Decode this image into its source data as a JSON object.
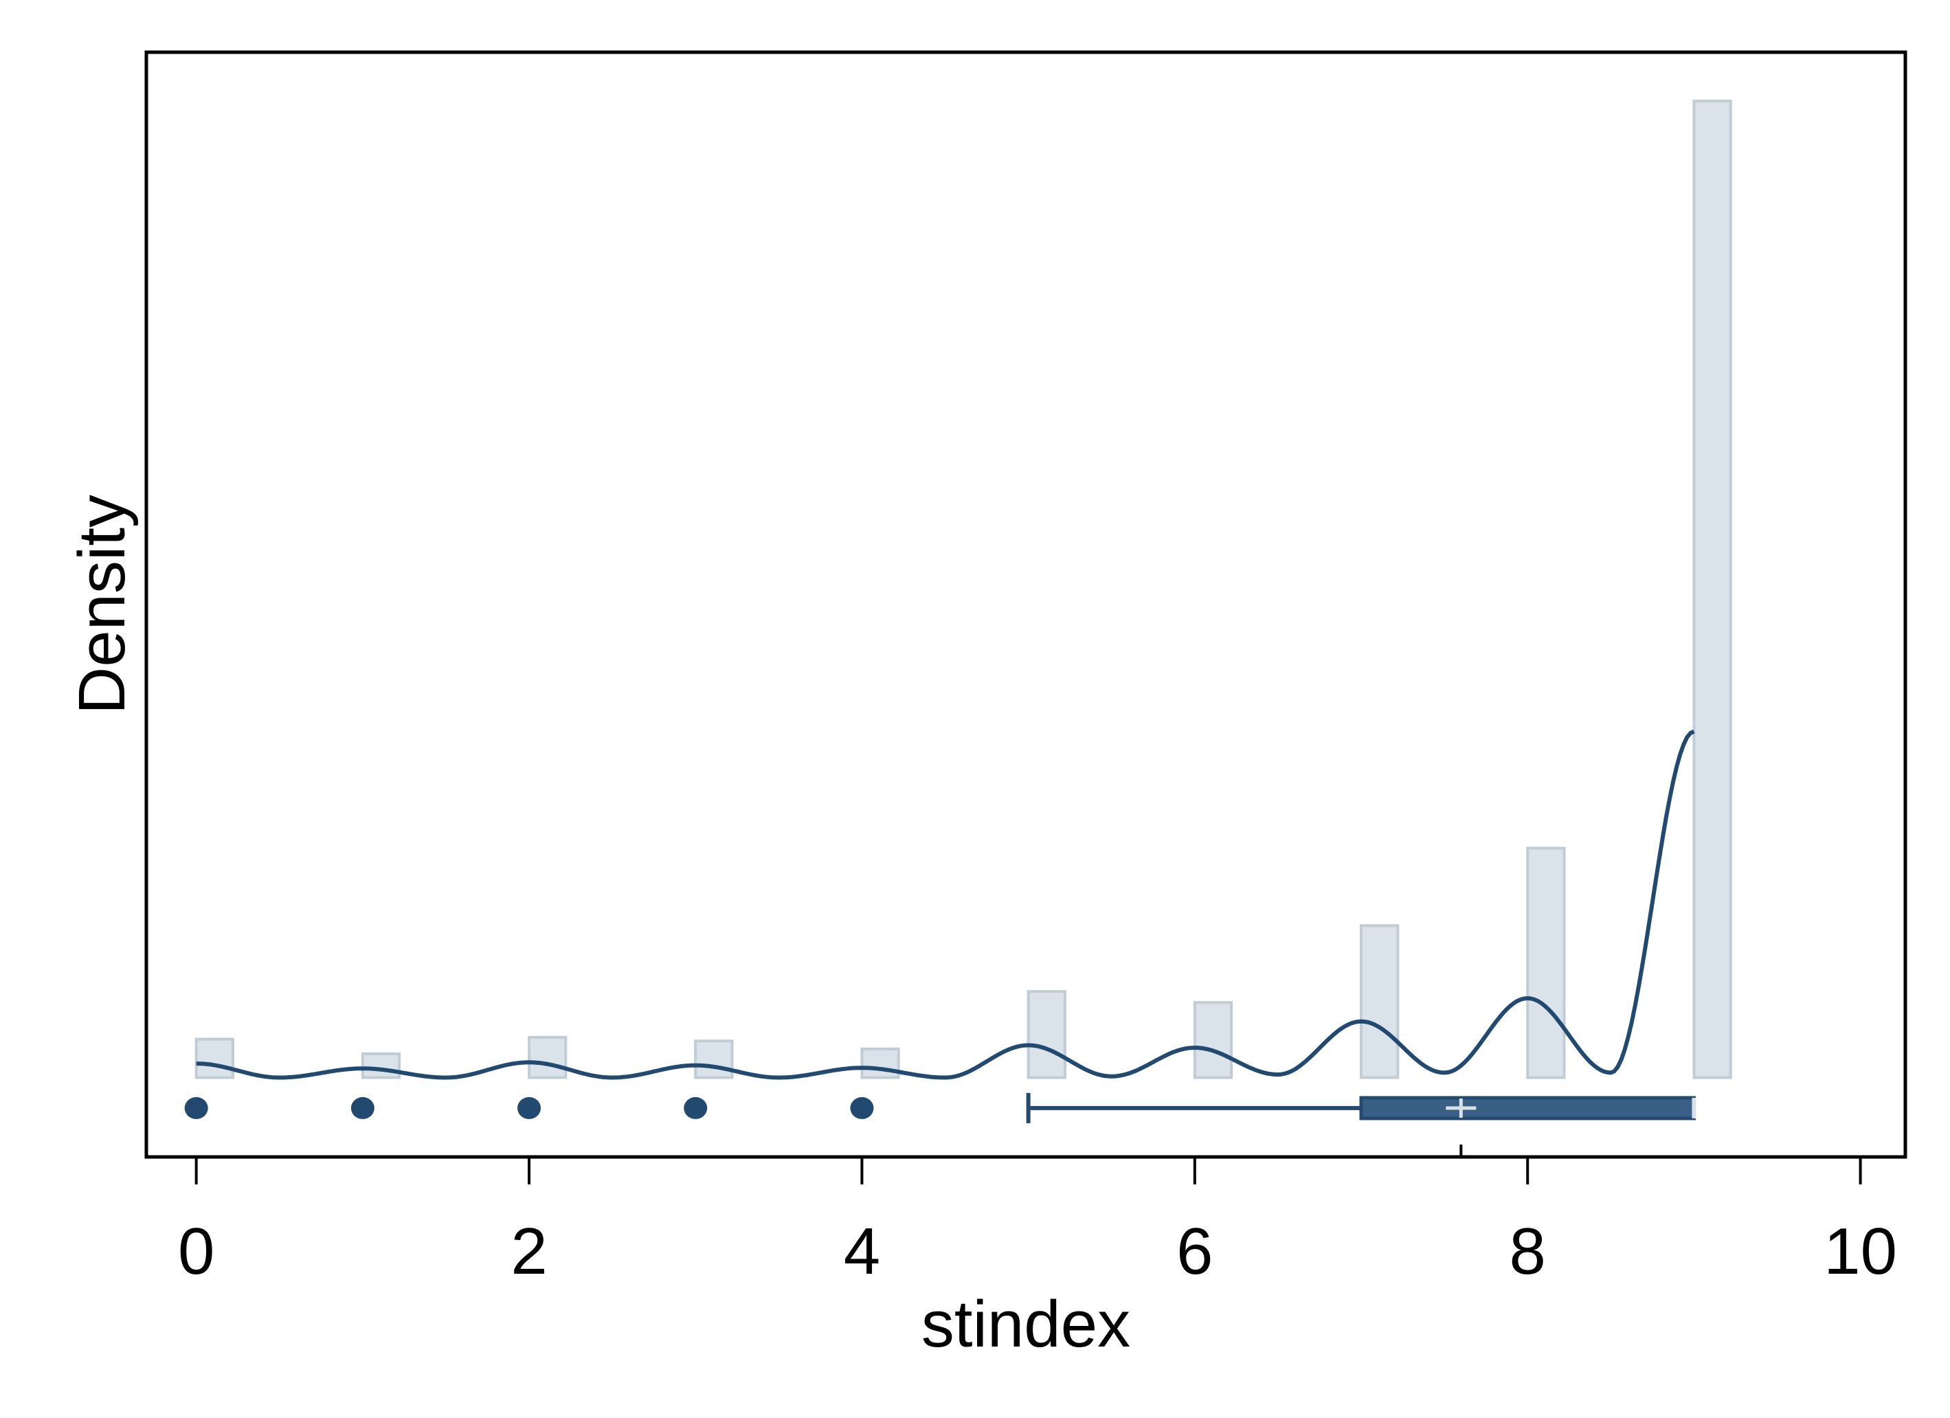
{
  "chart_data": {
    "type": "bar",
    "xlabel": "stindex",
    "ylabel": "Density",
    "xlim": [
      -0.3,
      10.27
    ],
    "ylim": [
      -0.13,
      1.68
    ],
    "x_ticks": [
      0,
      2,
      4,
      6,
      8,
      10
    ],
    "x_tick_labels": [
      "0",
      "2",
      "4",
      "6",
      "8",
      "10"
    ],
    "grid": false,
    "histogram": {
      "bins": [
        0,
        1,
        2,
        3,
        4,
        5,
        6,
        7,
        8,
        9
      ],
      "density": [
        0.063,
        0.039,
        0.066,
        0.06,
        0.047,
        0.141,
        0.123,
        0.249,
        0.376,
        1.6
      ],
      "bar_width": 0.22,
      "fill_color": "#dbe3ea",
      "stroke_color": "#c0ccd6"
    },
    "kde": {
      "x": [
        0,
        0.5,
        1,
        1.5,
        2,
        2.5,
        3,
        3.5,
        4,
        4.5,
        5,
        5.5,
        6,
        6.5,
        7,
        7.5,
        8,
        8.5,
        9
      ],
      "y": [
        0.023,
        0.0,
        0.015,
        0.0,
        0.025,
        0.0,
        0.02,
        0.0,
        0.016,
        0.0,
        0.053,
        0.002,
        0.049,
        0.005,
        0.092,
        0.008,
        0.13,
        0.008,
        0.567
      ],
      "color": "#224a70"
    },
    "boxplot": {
      "whisker_low": 5,
      "q1": 7,
      "median": 9,
      "q3": 9,
      "whisker_high": 9,
      "mean": 7.6,
      "outliers": [
        0,
        1,
        2,
        3,
        4
      ],
      "color": "#224a70",
      "box_fill": "#3a5f85",
      "mean_marker_color": "#d8e0e8"
    }
  }
}
